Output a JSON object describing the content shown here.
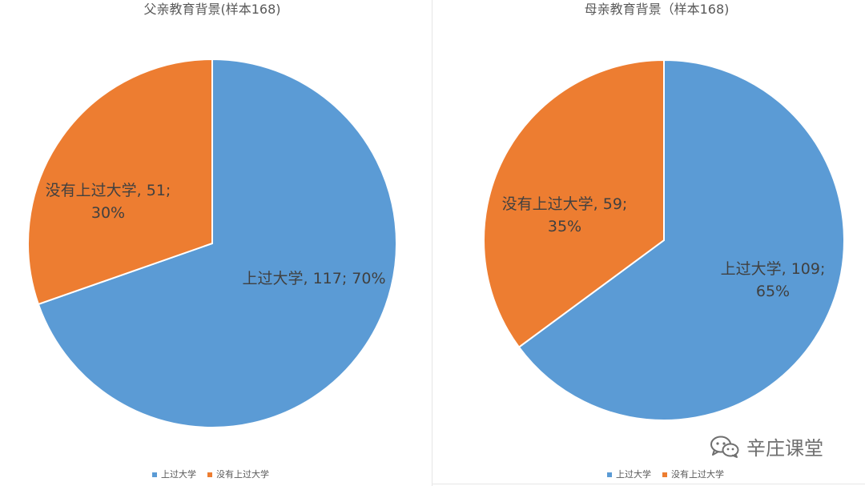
{
  "chart_data": [
    {
      "type": "pie",
      "title": "父亲教育背景(样本168)",
      "categories": [
        "上过大学",
        "没有上过大学"
      ],
      "values": [
        117,
        51
      ],
      "percents": [
        "70%",
        "30%"
      ],
      "colors": [
        "#5B9BD5",
        "#ED7D31"
      ],
      "data_labels": [
        [
          "上过大学, 117; 70%"
        ],
        [
          "没有上过大学, 51;",
          "30%"
        ]
      ],
      "legend": {
        "position": "bottom",
        "entries": [
          "上过大学",
          "没有上过大学"
        ]
      }
    },
    {
      "type": "pie",
      "title": "母亲教育背景（样本168)",
      "categories": [
        "上过大学",
        "没有上过大学"
      ],
      "values": [
        109,
        59
      ],
      "percents": [
        "65%",
        "35%"
      ],
      "colors": [
        "#5B9BD5",
        "#ED7D31"
      ],
      "data_labels": [
        [
          "上过大学, 109;",
          "65%"
        ],
        [
          "没有上过大学, 59;",
          "35%"
        ]
      ],
      "legend": {
        "position": "bottom",
        "entries": [
          "上过大学",
          "没有上过大学"
        ]
      }
    }
  ],
  "watermark": {
    "text": "辛庄课堂",
    "icon": "wechat-icon"
  }
}
